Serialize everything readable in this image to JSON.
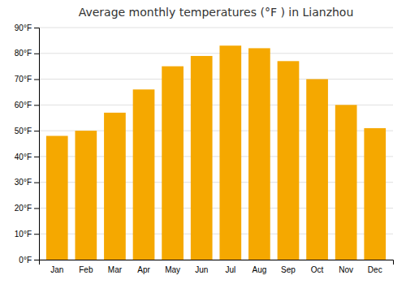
{
  "chart_data": {
    "type": "bar",
    "title": "Average monthly temperatures (°F ) in Lianzhou",
    "categories": [
      "Jan",
      "Feb",
      "Mar",
      "Apr",
      "May",
      "Jun",
      "Jul",
      "Aug",
      "Sep",
      "Oct",
      "Nov",
      "Dec"
    ],
    "values": [
      48,
      50,
      57,
      66,
      75,
      79,
      83,
      82,
      77,
      70,
      60,
      51
    ],
    "color": "#F5A800",
    "ylim": [
      0,
      90
    ],
    "yticks": [
      {
        "value": 0,
        "label": "0°F"
      },
      {
        "value": 10,
        "label": "10°F"
      },
      {
        "value": 20,
        "label": "20°F"
      },
      {
        "value": 30,
        "label": "30°F"
      },
      {
        "value": 40,
        "label": "40°F"
      },
      {
        "value": 50,
        "label": "50°F"
      },
      {
        "value": 60,
        "label": "60°F"
      },
      {
        "value": 70,
        "label": "70°F"
      },
      {
        "value": 80,
        "label": "80°F"
      },
      {
        "value": 90,
        "label": "90°F"
      }
    ],
    "grid": true
  }
}
